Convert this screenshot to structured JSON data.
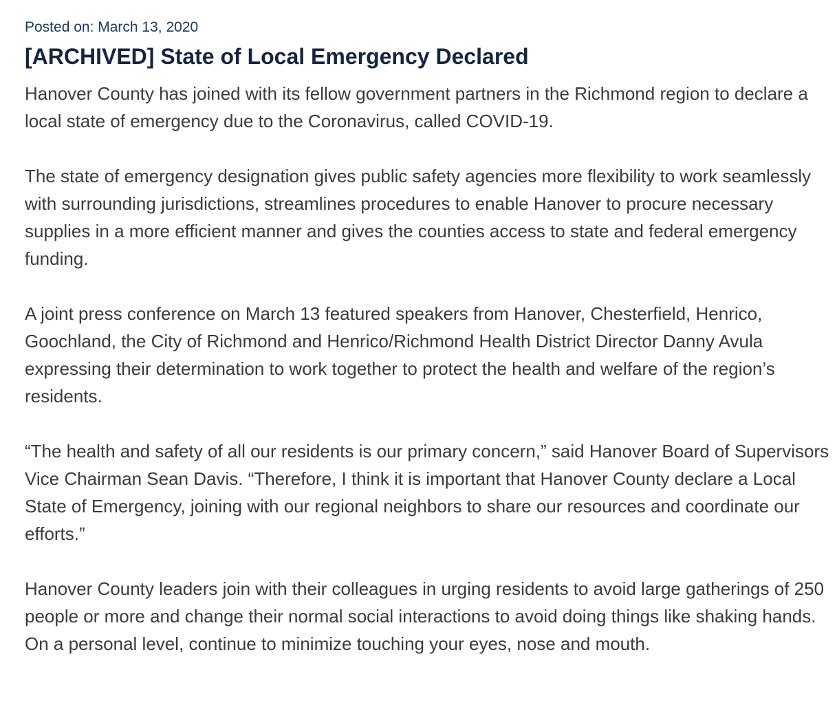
{
  "article": {
    "posted_on": "Posted on: March 13, 2020",
    "title": "[ARCHIVED] State of Local Emergency Declared",
    "paragraphs": [
      "Hanover County has joined with its fellow government partners in the Richmond region to declare a local state of emergency due to the Coronavirus, called COVID-19.",
      "The state of emergency designation gives public safety agencies more flexibility to work seamlessly with surrounding jurisdictions, streamlines procedures to enable Hanover to procure necessary supplies in a more efficient manner and gives the counties access to state and federal emergency funding.",
      "A joint press conference on March 13 featured speakers from Hanover, Chesterfield, Henrico, Goochland, the City of Richmond and Henrico/Richmond Health District Director Danny Avula expressing their determination to work together to protect the health and welfare of the region’s residents.",
      "“The health and safety of all our residents is our primary concern,” said Hanover Board of Supervisors Vice Chairman Sean Davis. “Therefore, I think it is important that Hanover County declare a Local State of Emergency, joining with our regional neighbors to share our resources and coordinate our efforts.”",
      "Hanover County leaders join with their colleagues in urging residents to avoid large gatherings of 250 people or more and change their normal social interactions to avoid doing things like shaking hands. On a personal level, continue to minimize touching your eyes, nose and mouth."
    ]
  }
}
